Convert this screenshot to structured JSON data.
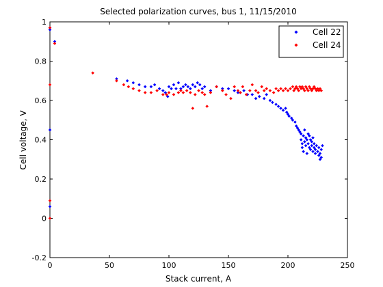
{
  "chart_data": {
    "type": "scatter",
    "title": "Selected polarization curves, bus 1, 11/15/2010",
    "xlabel": "Stack current, A",
    "ylabel": "Cell voltage, V",
    "xlim": [
      0,
      250
    ],
    "ylim": [
      -0.2,
      1.0
    ],
    "xticks": [
      0,
      50,
      100,
      150,
      200,
      250
    ],
    "yticks": [
      -0.2,
      0,
      0.2,
      0.4,
      0.6,
      0.8,
      1
    ],
    "grid": false,
    "legend": "top-right",
    "series": [
      {
        "name": "Cell 22",
        "color": "#0000ff",
        "marker": "diamond",
        "points": [
          [
            0,
            0.06
          ],
          [
            0,
            0.45
          ],
          [
            0,
            0.96
          ],
          [
            0,
            0.97
          ],
          [
            4,
            0.9
          ],
          [
            56,
            0.71
          ],
          [
            65,
            0.7
          ],
          [
            70,
            0.69
          ],
          [
            75,
            0.68
          ],
          [
            80,
            0.67
          ],
          [
            85,
            0.67
          ],
          [
            88,
            0.68
          ],
          [
            92,
            0.66
          ],
          [
            95,
            0.65
          ],
          [
            97,
            0.64
          ],
          [
            99,
            0.62
          ],
          [
            100,
            0.67
          ],
          [
            102,
            0.66
          ],
          [
            104,
            0.68
          ],
          [
            106,
            0.66
          ],
          [
            108,
            0.69
          ],
          [
            110,
            0.66
          ],
          [
            112,
            0.67
          ],
          [
            114,
            0.68
          ],
          [
            116,
            0.67
          ],
          [
            118,
            0.66
          ],
          [
            120,
            0.68
          ],
          [
            122,
            0.67
          ],
          [
            124,
            0.69
          ],
          [
            126,
            0.68
          ],
          [
            128,
            0.66
          ],
          [
            130,
            0.67
          ],
          [
            135,
            0.65
          ],
          [
            140,
            0.67
          ],
          [
            145,
            0.66
          ],
          [
            150,
            0.66
          ],
          [
            155,
            0.65
          ],
          [
            158,
            0.64
          ],
          [
            160,
            0.64
          ],
          [
            163,
            0.65
          ],
          [
            166,
            0.63
          ],
          [
            170,
            0.63
          ],
          [
            173,
            0.61
          ],
          [
            176,
            0.62
          ],
          [
            180,
            0.61
          ],
          [
            182,
            0.63
          ],
          [
            185,
            0.6
          ],
          [
            187,
            0.59
          ],
          [
            190,
            0.58
          ],
          [
            192,
            0.57
          ],
          [
            194,
            0.56
          ],
          [
            196,
            0.55
          ],
          [
            198,
            0.56
          ],
          [
            199,
            0.54
          ],
          [
            200,
            0.53
          ],
          [
            201,
            0.52
          ],
          [
            203,
            0.51
          ],
          [
            204,
            0.5
          ],
          [
            206,
            0.49
          ],
          [
            207,
            0.47
          ],
          [
            208,
            0.46
          ],
          [
            209,
            0.45
          ],
          [
            210,
            0.44
          ],
          [
            211,
            0.43
          ],
          [
            211,
            0.4
          ],
          [
            212,
            0.38
          ],
          [
            212,
            0.36
          ],
          [
            213,
            0.42
          ],
          [
            213,
            0.34
          ],
          [
            214,
            0.39
          ],
          [
            214,
            0.45
          ],
          [
            215,
            0.41
          ],
          [
            215,
            0.37
          ],
          [
            216,
            0.4
          ],
          [
            216,
            0.33
          ],
          [
            217,
            0.43
          ],
          [
            217,
            0.38
          ],
          [
            218,
            0.42
          ],
          [
            218,
            0.36
          ],
          [
            219,
            0.35
          ],
          [
            219,
            0.4
          ],
          [
            220,
            0.39
          ],
          [
            220,
            0.37
          ],
          [
            221,
            0.34
          ],
          [
            221,
            0.41
          ],
          [
            222,
            0.36
          ],
          [
            222,
            0.38
          ],
          [
            223,
            0.35
          ],
          [
            223,
            0.33
          ],
          [
            224,
            0.37
          ],
          [
            225,
            0.34
          ],
          [
            226,
            0.32
          ],
          [
            226,
            0.36
          ],
          [
            227,
            0.3
          ],
          [
            227,
            0.33
          ],
          [
            228,
            0.31
          ],
          [
            228,
            0.35
          ],
          [
            229,
            0.37
          ]
        ]
      },
      {
        "name": "Cell 24",
        "color": "#ff0000",
        "marker": "diamond",
        "points": [
          [
            0,
            0.0
          ],
          [
            0,
            0.09
          ],
          [
            0,
            0.68
          ],
          [
            0,
            0.97
          ],
          [
            4,
            0.89
          ],
          [
            36,
            0.74
          ],
          [
            56,
            0.7
          ],
          [
            62,
            0.68
          ],
          [
            66,
            0.67
          ],
          [
            70,
            0.66
          ],
          [
            75,
            0.65
          ],
          [
            80,
            0.64
          ],
          [
            85,
            0.64
          ],
          [
            90,
            0.65
          ],
          [
            95,
            0.63
          ],
          [
            98,
            0.63
          ],
          [
            100,
            0.64
          ],
          [
            104,
            0.63
          ],
          [
            108,
            0.64
          ],
          [
            110,
            0.65
          ],
          [
            112,
            0.64
          ],
          [
            115,
            0.65
          ],
          [
            118,
            0.64
          ],
          [
            120,
            0.56
          ],
          [
            122,
            0.63
          ],
          [
            125,
            0.65
          ],
          [
            128,
            0.64
          ],
          [
            130,
            0.63
          ],
          [
            132,
            0.57
          ],
          [
            135,
            0.64
          ],
          [
            140,
            0.67
          ],
          [
            145,
            0.65
          ],
          [
            148,
            0.63
          ],
          [
            152,
            0.61
          ],
          [
            155,
            0.67
          ],
          [
            158,
            0.65
          ],
          [
            160,
            0.64
          ],
          [
            162,
            0.67
          ],
          [
            165,
            0.63
          ],
          [
            168,
            0.65
          ],
          [
            170,
            0.68
          ],
          [
            173,
            0.65
          ],
          [
            175,
            0.64
          ],
          [
            178,
            0.67
          ],
          [
            180,
            0.65
          ],
          [
            182,
            0.66
          ],
          [
            185,
            0.65
          ],
          [
            188,
            0.64
          ],
          [
            190,
            0.66
          ],
          [
            192,
            0.65
          ],
          [
            194,
            0.66
          ],
          [
            196,
            0.65
          ],
          [
            198,
            0.66
          ],
          [
            200,
            0.65
          ],
          [
            202,
            0.66
          ],
          [
            204,
            0.67
          ],
          [
            205,
            0.65
          ],
          [
            206,
            0.66
          ],
          [
            207,
            0.67
          ],
          [
            208,
            0.66
          ],
          [
            209,
            0.65
          ],
          [
            210,
            0.67
          ],
          [
            211,
            0.66
          ],
          [
            212,
            0.67
          ],
          [
            213,
            0.66
          ],
          [
            214,
            0.65
          ],
          [
            215,
            0.67
          ],
          [
            216,
            0.66
          ],
          [
            217,
            0.65
          ],
          [
            218,
            0.67
          ],
          [
            219,
            0.66
          ],
          [
            220,
            0.65
          ],
          [
            221,
            0.66
          ],
          [
            222,
            0.67
          ],
          [
            223,
            0.66
          ],
          [
            224,
            0.65
          ],
          [
            225,
            0.66
          ],
          [
            226,
            0.65
          ],
          [
            227,
            0.66
          ],
          [
            228,
            0.65
          ]
        ]
      }
    ]
  }
}
